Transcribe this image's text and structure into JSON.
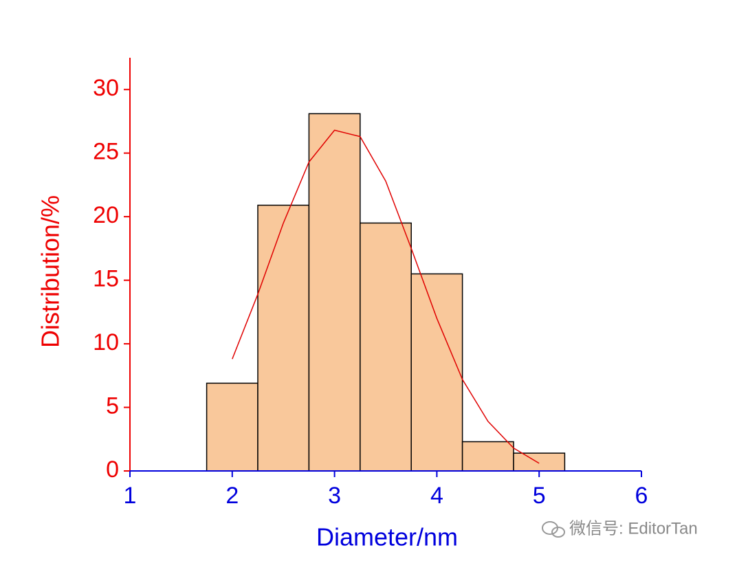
{
  "chart_data": {
    "type": "histogram",
    "x_label": "Diameter/nm",
    "y_label": "Distribution/%",
    "bins": [
      1.75,
      2.25,
      2.75,
      3.25,
      3.75,
      4.25,
      4.75,
      5.25
    ],
    "values": [
      6.9,
      20.9,
      28.1,
      19.5,
      15.5,
      2.3,
      1.4
    ],
    "color": "#f9c89b",
    "edge_color": "#000000",
    "fit": {
      "x": [
        2,
        2.25,
        2.5,
        2.75,
        3,
        3.25,
        3.5,
        3.75,
        4,
        4.25,
        4.5,
        4.75,
        5
      ],
      "values": [
        8.8,
        13.9,
        19.5,
        24.3,
        26.8,
        26.3,
        22.8,
        17.5,
        12.0,
        7.2,
        3.9,
        1.8,
        0.6
      ],
      "color": "#e00000"
    },
    "xlim": [
      1,
      6
    ],
    "ylim": [
      0,
      32.5
    ],
    "xticks": [
      1,
      2,
      3,
      4,
      5,
      6
    ],
    "yticks": [
      0,
      5,
      10,
      15,
      20,
      25,
      30
    ],
    "x_axis_color": "#0000dd",
    "y_axis_color": "#ee0000"
  },
  "watermark": "微信号: EditorTan"
}
